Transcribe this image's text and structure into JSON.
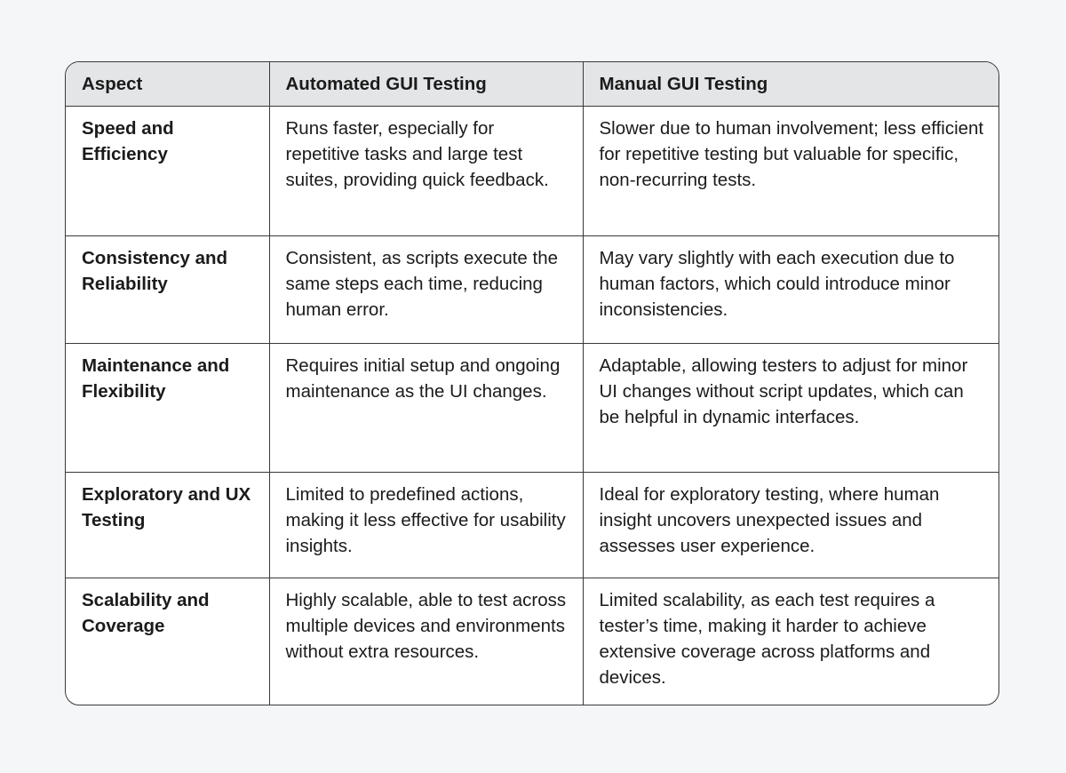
{
  "table": {
    "header": [
      "Aspect",
      "Automated GUI Testing",
      "Manual GUI Testing"
    ],
    "rows": [
      [
        "Speed and Efficiency",
        "Runs faster, especially for repetitive tasks and large test suites, providing quick feedback.",
        "Slower due to human involvement; less efficient for repetitive testing but valuable for specific, non-recurring tests."
      ],
      [
        "Consistency and Reliability",
        "Consistent, as scripts execute the same steps each time, reducing human error.",
        "May vary slightly with each execution due to human factors, which could introduce minor inconsistencies."
      ],
      [
        "Maintenance and Flexibility",
        "Requires initial setup and ongoing maintenance as the UI changes.",
        "Adaptable, allowing testers to adjust for minor UI changes without script updates, which can be helpful in dynamic interfaces."
      ],
      [
        "Exploratory and UX Testing",
        "Limited to predefined actions, making it less effective for usability insights.",
        "Ideal for exploratory testing, where human insight uncovers unexpected issues and assesses user experience."
      ],
      [
        "Scalability and Coverage",
        "Highly scalable, able to test across multiple devices and environments without extra resources.",
        "Limited scalability, as each test requires a tester’s time, making it harder to achieve extensive coverage across platforms and devices."
      ]
    ]
  }
}
